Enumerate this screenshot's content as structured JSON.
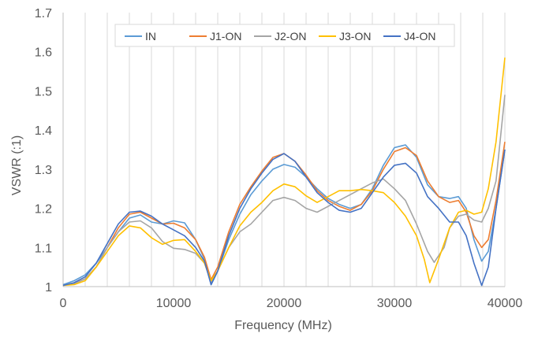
{
  "chart_data": {
    "type": "line",
    "title": "",
    "xlabel": "Frequency (MHz)",
    "ylabel": "VSWR (:1)",
    "xlim": [
      0,
      40000
    ],
    "ylim": [
      1,
      1.7
    ],
    "x_ticks": [
      "0",
      "10000",
      "20000",
      "30000",
      "40000"
    ],
    "y_ticks": [
      "1",
      "1.1",
      "1.2",
      "1.3",
      "1.4",
      "1.5",
      "1.6",
      "1.7"
    ],
    "grid": "vertical",
    "legend_position": "top-inside",
    "series": [
      {
        "name": "IN",
        "color": "#5B9BD5",
        "points": [
          [
            0,
            1.005
          ],
          [
            1000,
            1.015
          ],
          [
            2000,
            1.03
          ],
          [
            3000,
            1.06
          ],
          [
            4000,
            1.1
          ],
          [
            5000,
            1.14
          ],
          [
            6000,
            1.175
          ],
          [
            7000,
            1.183
          ],
          [
            8000,
            1.165
          ],
          [
            9000,
            1.16
          ],
          [
            10000,
            1.168
          ],
          [
            11000,
            1.163
          ],
          [
            12000,
            1.12
          ],
          [
            12800,
            1.07
          ],
          [
            13400,
            1.005
          ],
          [
            14000,
            1.04
          ],
          [
            15000,
            1.12
          ],
          [
            16000,
            1.185
          ],
          [
            17000,
            1.235
          ],
          [
            18000,
            1.27
          ],
          [
            19000,
            1.3
          ],
          [
            20000,
            1.312
          ],
          [
            21000,
            1.305
          ],
          [
            22000,
            1.28
          ],
          [
            23000,
            1.25
          ],
          [
            24000,
            1.225
          ],
          [
            25000,
            1.21
          ],
          [
            26000,
            1.2
          ],
          [
            27000,
            1.21
          ],
          [
            28000,
            1.25
          ],
          [
            29000,
            1.31
          ],
          [
            30000,
            1.355
          ],
          [
            31000,
            1.362
          ],
          [
            32000,
            1.33
          ],
          [
            33000,
            1.26
          ],
          [
            34000,
            1.23
          ],
          [
            35000,
            1.225
          ],
          [
            35800,
            1.23
          ],
          [
            36500,
            1.2
          ],
          [
            37200,
            1.12
          ],
          [
            37900,
            1.065
          ],
          [
            38500,
            1.09
          ],
          [
            39200,
            1.2
          ],
          [
            40000,
            1.35
          ]
        ]
      },
      {
        "name": "J1-ON",
        "color": "#ED7D31",
        "points": [
          [
            0,
            1.003
          ],
          [
            1000,
            1.008
          ],
          [
            2000,
            1.02
          ],
          [
            3000,
            1.05
          ],
          [
            4000,
            1.1
          ],
          [
            5000,
            1.15
          ],
          [
            6000,
            1.185
          ],
          [
            7000,
            1.19
          ],
          [
            8000,
            1.175
          ],
          [
            9000,
            1.16
          ],
          [
            10000,
            1.162
          ],
          [
            11000,
            1.15
          ],
          [
            12000,
            1.12
          ],
          [
            12800,
            1.075
          ],
          [
            13400,
            1.018
          ],
          [
            14000,
            1.05
          ],
          [
            15000,
            1.14
          ],
          [
            16000,
            1.21
          ],
          [
            17000,
            1.255
          ],
          [
            18000,
            1.295
          ],
          [
            19000,
            1.33
          ],
          [
            20000,
            1.34
          ],
          [
            21000,
            1.32
          ],
          [
            22000,
            1.285
          ],
          [
            23000,
            1.245
          ],
          [
            24000,
            1.22
          ],
          [
            25000,
            1.205
          ],
          [
            26000,
            1.195
          ],
          [
            27000,
            1.21
          ],
          [
            28000,
            1.245
          ],
          [
            29000,
            1.3
          ],
          [
            30000,
            1.345
          ],
          [
            31000,
            1.355
          ],
          [
            32000,
            1.335
          ],
          [
            33000,
            1.27
          ],
          [
            34000,
            1.23
          ],
          [
            35000,
            1.215
          ],
          [
            35800,
            1.22
          ],
          [
            36500,
            1.19
          ],
          [
            37200,
            1.13
          ],
          [
            37900,
            1.1
          ],
          [
            38500,
            1.12
          ],
          [
            39200,
            1.22
          ],
          [
            40000,
            1.37
          ]
        ]
      },
      {
        "name": "J2-ON",
        "color": "#A5A5A5",
        "points": [
          [
            0,
            1.003
          ],
          [
            1000,
            1.007
          ],
          [
            2000,
            1.02
          ],
          [
            3000,
            1.05
          ],
          [
            4000,
            1.1
          ],
          [
            5000,
            1.14
          ],
          [
            6000,
            1.165
          ],
          [
            7000,
            1.168
          ],
          [
            8000,
            1.15
          ],
          [
            9000,
            1.115
          ],
          [
            10000,
            1.098
          ],
          [
            11000,
            1.095
          ],
          [
            12000,
            1.085
          ],
          [
            12800,
            1.06
          ],
          [
            13400,
            1.012
          ],
          [
            14000,
            1.04
          ],
          [
            15000,
            1.1
          ],
          [
            16000,
            1.14
          ],
          [
            17000,
            1.16
          ],
          [
            18000,
            1.19
          ],
          [
            19000,
            1.22
          ],
          [
            20000,
            1.228
          ],
          [
            21000,
            1.22
          ],
          [
            22000,
            1.2
          ],
          [
            23000,
            1.19
          ],
          [
            24000,
            1.205
          ],
          [
            25000,
            1.22
          ],
          [
            26000,
            1.235
          ],
          [
            27000,
            1.25
          ],
          [
            28000,
            1.265
          ],
          [
            29000,
            1.275
          ],
          [
            30000,
            1.25
          ],
          [
            31000,
            1.22
          ],
          [
            32000,
            1.16
          ],
          [
            33000,
            1.09
          ],
          [
            33600,
            1.062
          ],
          [
            34500,
            1.1
          ],
          [
            35000,
            1.15
          ],
          [
            35800,
            1.18
          ],
          [
            36500,
            1.185
          ],
          [
            37200,
            1.17
          ],
          [
            37900,
            1.165
          ],
          [
            38500,
            1.2
          ],
          [
            39200,
            1.27
          ],
          [
            40000,
            1.49
          ]
        ]
      },
      {
        "name": "J3-ON",
        "color": "#FFC000",
        "points": [
          [
            0,
            1.003
          ],
          [
            1000,
            1.005
          ],
          [
            2000,
            1.015
          ],
          [
            3000,
            1.05
          ],
          [
            4000,
            1.09
          ],
          [
            5000,
            1.13
          ],
          [
            6000,
            1.155
          ],
          [
            7000,
            1.15
          ],
          [
            8000,
            1.125
          ],
          [
            9000,
            1.108
          ],
          [
            10000,
            1.118
          ],
          [
            11000,
            1.12
          ],
          [
            12000,
            1.09
          ],
          [
            12800,
            1.06
          ],
          [
            13400,
            1.015
          ],
          [
            14000,
            1.04
          ],
          [
            15000,
            1.1
          ],
          [
            16000,
            1.155
          ],
          [
            17000,
            1.19
          ],
          [
            18000,
            1.215
          ],
          [
            19000,
            1.245
          ],
          [
            20000,
            1.262
          ],
          [
            21000,
            1.255
          ],
          [
            22000,
            1.232
          ],
          [
            23000,
            1.215
          ],
          [
            24000,
            1.23
          ],
          [
            25000,
            1.245
          ],
          [
            26000,
            1.245
          ],
          [
            27000,
            1.248
          ],
          [
            28000,
            1.245
          ],
          [
            29000,
            1.24
          ],
          [
            30000,
            1.215
          ],
          [
            31000,
            1.18
          ],
          [
            32000,
            1.13
          ],
          [
            32700,
            1.07
          ],
          [
            33200,
            1.01
          ],
          [
            34000,
            1.07
          ],
          [
            35000,
            1.15
          ],
          [
            35800,
            1.19
          ],
          [
            36500,
            1.195
          ],
          [
            37200,
            1.185
          ],
          [
            37900,
            1.19
          ],
          [
            38500,
            1.25
          ],
          [
            39200,
            1.37
          ],
          [
            40000,
            1.585
          ]
        ]
      },
      {
        "name": "J4-ON",
        "color": "#4472C4",
        "points": [
          [
            0,
            1.003
          ],
          [
            1000,
            1.01
          ],
          [
            2000,
            1.025
          ],
          [
            3000,
            1.06
          ],
          [
            4000,
            1.11
          ],
          [
            5000,
            1.16
          ],
          [
            6000,
            1.19
          ],
          [
            7000,
            1.193
          ],
          [
            8000,
            1.18
          ],
          [
            9000,
            1.16
          ],
          [
            10000,
            1.145
          ],
          [
            11000,
            1.13
          ],
          [
            12000,
            1.1
          ],
          [
            12800,
            1.065
          ],
          [
            13400,
            1.005
          ],
          [
            14000,
            1.04
          ],
          [
            15000,
            1.13
          ],
          [
            16000,
            1.2
          ],
          [
            17000,
            1.25
          ],
          [
            18000,
            1.29
          ],
          [
            19000,
            1.325
          ],
          [
            20000,
            1.34
          ],
          [
            21000,
            1.32
          ],
          [
            22000,
            1.28
          ],
          [
            23000,
            1.24
          ],
          [
            24000,
            1.215
          ],
          [
            25000,
            1.195
          ],
          [
            26000,
            1.19
          ],
          [
            27000,
            1.2
          ],
          [
            28000,
            1.24
          ],
          [
            29000,
            1.28
          ],
          [
            30000,
            1.31
          ],
          [
            31000,
            1.315
          ],
          [
            32000,
            1.29
          ],
          [
            33000,
            1.23
          ],
          [
            34000,
            1.2
          ],
          [
            35000,
            1.165
          ],
          [
            35800,
            1.165
          ],
          [
            36500,
            1.13
          ],
          [
            37200,
            1.06
          ],
          [
            37900,
            1.003
          ],
          [
            38500,
            1.05
          ],
          [
            39200,
            1.2
          ],
          [
            40000,
            1.35
          ]
        ]
      }
    ]
  }
}
